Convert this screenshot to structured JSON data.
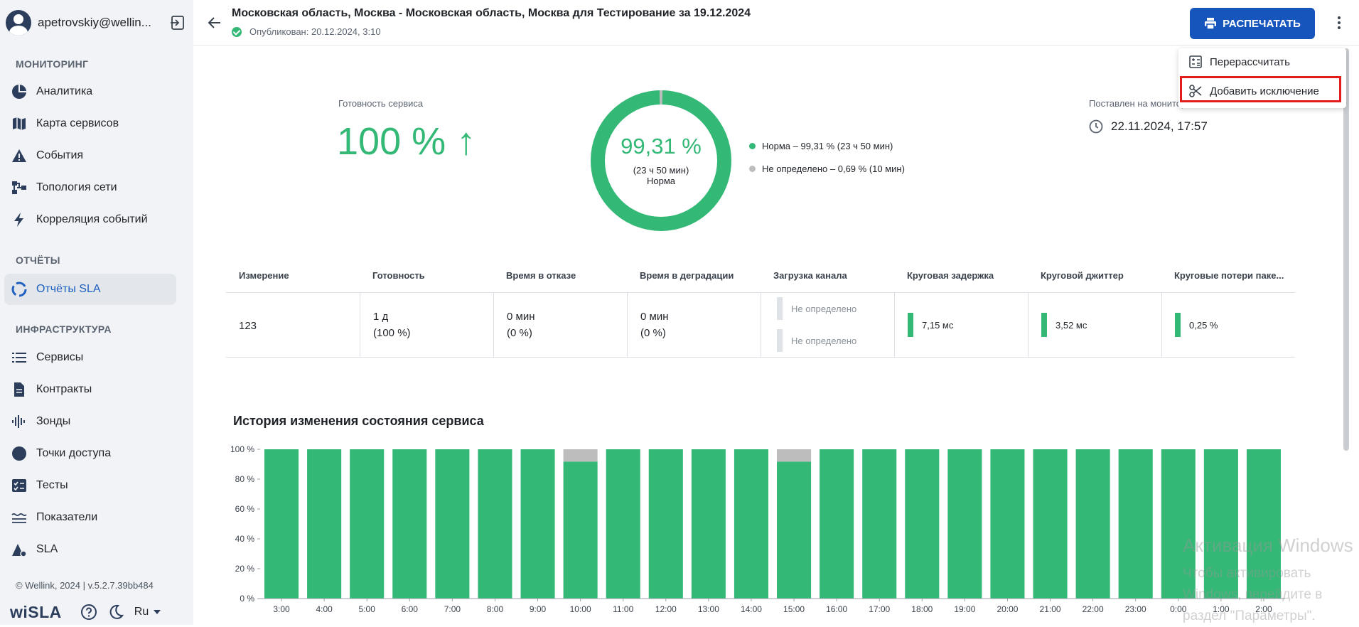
{
  "sidebar": {
    "user": "apetrovskiy@wellin...",
    "sections": {
      "monitoring": "МОНИТОРИНГ",
      "reports": "ОТЧЁТЫ",
      "infrastructure": "ИНФРАСТРУКТУРА"
    },
    "items": [
      {
        "label": "Аналитика",
        "icon": "pie-chart-icon"
      },
      {
        "label": "Карта сервисов",
        "icon": "map-icon"
      },
      {
        "label": "События",
        "icon": "warning-icon"
      },
      {
        "label": "Топология сети",
        "icon": "topology-icon"
      },
      {
        "label": "Корреляция событий",
        "icon": "lightning-icon"
      },
      {
        "label": "Отчёты SLA",
        "icon": "sla-report-icon",
        "active": true
      },
      {
        "label": "Сервисы",
        "icon": "list-icon"
      },
      {
        "label": "Контракты",
        "icon": "document-icon"
      },
      {
        "label": "Зонды",
        "icon": "probe-icon"
      },
      {
        "label": "Точки доступа",
        "icon": "access-point-icon"
      },
      {
        "label": "Тесты",
        "icon": "tests-icon"
      },
      {
        "label": "Показатели",
        "icon": "metrics-icon"
      },
      {
        "label": "SLA",
        "icon": "sla-icon"
      }
    ],
    "footer": "© Wellink, 2024 | v.5.2.7.39bb484",
    "logo": "wiSLA",
    "language": "Ru"
  },
  "header": {
    "title": "Московская область, Москва - Московская область, Москва для Тестирование за 19.12.2024",
    "published": "Опубликован: 20.12.2024, 3:10",
    "print_label": "РАСПЕЧАТАТЬ"
  },
  "menu": {
    "recalculate": "Перерассчитать",
    "add_exception": "Добавить исключение"
  },
  "summary": {
    "readiness_label": "Готовность сервиса",
    "readiness_value": "100 % ↑",
    "donut_percent": "99,31 %",
    "donut_duration": "(23 ч 50 мин)",
    "donut_status": "Норма",
    "legend_norm": "Норма – 99,31 % (23 ч 50 мин)",
    "legend_undefined": "Не определено – 0,69 % (10 мин)",
    "monitor_label": "Поставлен на мониторинг",
    "monitor_value": "22.11.2024, 17:57",
    "norm_share": 0.9931
  },
  "table": {
    "headers": [
      "Измерение",
      "Готовность",
      "Время в отказе",
      "Время в деградации",
      "Загрузка канала",
      "Круговая задержка",
      "Круговой джиттер",
      "Круговые потери паке..."
    ],
    "row": {
      "measurement": "123",
      "readiness_1": "1 д",
      "readiness_2": "(100 %)",
      "failure_1": "0 мин",
      "failure_2": "(0 %)",
      "degradation_1": "0 мин",
      "degradation_2": "(0 %)",
      "load_1": "Не определено",
      "load_2": "Не определено",
      "delay": "7,15 мс",
      "jitter": "3,52 мс",
      "loss": "0,25 %"
    }
  },
  "history": {
    "title": "История изменения состояния сервиса"
  },
  "chart_data": {
    "type": "bar",
    "categories": [
      "3:00",
      "4:00",
      "5:00",
      "6:00",
      "7:00",
      "8:00",
      "9:00",
      "10:00",
      "11:00",
      "12:00",
      "13:00",
      "14:00",
      "15:00",
      "16:00",
      "17:00",
      "18:00",
      "19:00",
      "20:00",
      "21:00",
      "22:00",
      "23:00",
      "0:00",
      "1:00",
      "2:00"
    ],
    "series": [
      {
        "values": [
          100,
          100,
          100,
          100,
          100,
          100,
          100,
          91.7,
          100,
          100,
          100,
          100,
          91.7,
          100,
          100,
          100,
          100,
          100,
          100,
          100,
          100,
          100,
          100,
          100
        ],
        "color": "#33b876"
      },
      {
        "values": [
          0,
          0,
          0,
          0,
          0,
          0,
          0,
          8.3,
          0,
          0,
          0,
          0,
          8.3,
          0,
          0,
          0,
          0,
          0,
          0,
          0,
          0,
          0,
          0,
          0
        ],
        "color": "#bdbdbd"
      }
    ],
    "yticks": [
      "0 %",
      "20 %",
      "40 %",
      "60 %",
      "80 %",
      "100 %"
    ],
    "ylim": [
      0,
      100
    ],
    "stacked": true
  },
  "watermark": {
    "line1": "Активация Windows",
    "line2": "Чтобы активировать Windows, перейдите в",
    "line3": "раздел \"Параметры\"."
  },
  "colors": {
    "accent": "#1656bc",
    "green": "#33b876",
    "gray": "#bdbdbd"
  }
}
